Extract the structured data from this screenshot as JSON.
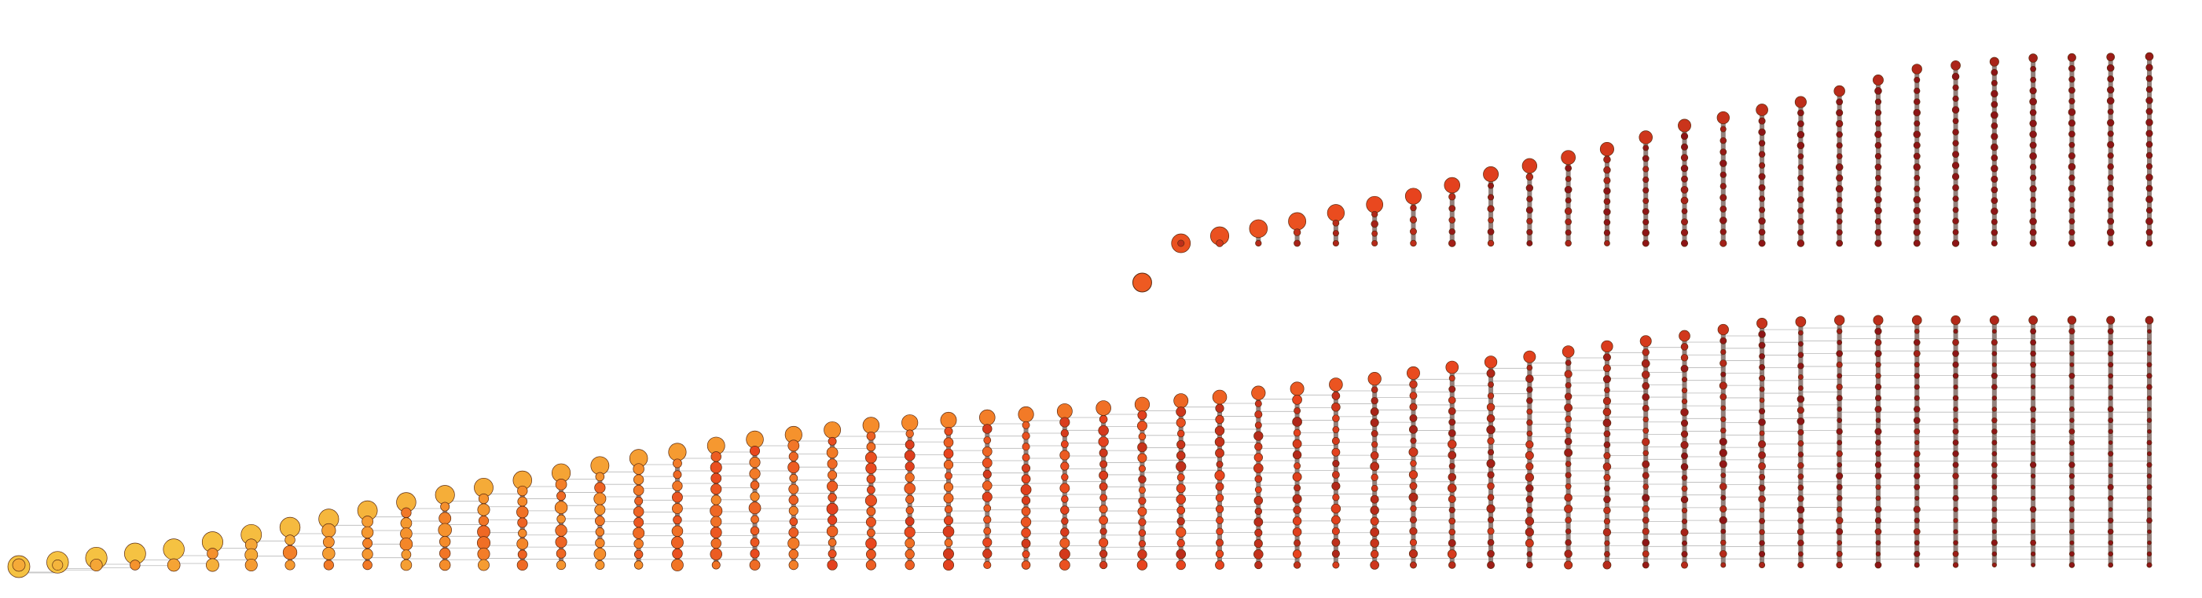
{
  "diagram": {
    "type": "layered-tree",
    "depth_levels": 56,
    "color_scale": {
      "start": "#f5c242",
      "mid": "#f58a2a",
      "late": "#e8441e",
      "end": "#8c1416"
    },
    "edge_color": "#8a8a8a",
    "node_stroke": "#5a2a10",
    "grid": false,
    "legend": "none"
  }
}
